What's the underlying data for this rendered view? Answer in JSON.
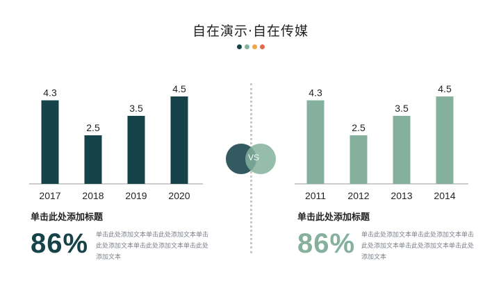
{
  "title": "自在演示·自在传媒",
  "colors": {
    "dark": "#16434a",
    "green": "#84b09d",
    "dot_orange": "#f0a64a",
    "dot_red": "#e06a4e",
    "axis": "#9a9a9a"
  },
  "chart_data": [
    {
      "type": "bar",
      "categories": [
        "2017",
        "2018",
        "2019",
        "2020"
      ],
      "values": [
        4.3,
        2.5,
        3.5,
        4.5
      ],
      "ylim": [
        0,
        5
      ],
      "color": "#16434a"
    },
    {
      "type": "bar",
      "categories": [
        "2011",
        "2012",
        "2013",
        "2014"
      ],
      "values": [
        4.3,
        2.5,
        3.5,
        4.5
      ],
      "ylim": [
        0,
        5
      ],
      "color": "#84b09d"
    }
  ],
  "vs_label": "VS",
  "left": {
    "heading": "单击此处添加标题",
    "percent": "86%",
    "text": "单击此处添加文本单击此处添加文本单击此处添加文本单击此处添加文本单击此处添加文本"
  },
  "right": {
    "heading": "单击此处添加标题",
    "percent": "86%",
    "text": "单击此处添加文本单击此处添加文本单击此处添加文本单击此处添加文本单击此处添加文本"
  }
}
